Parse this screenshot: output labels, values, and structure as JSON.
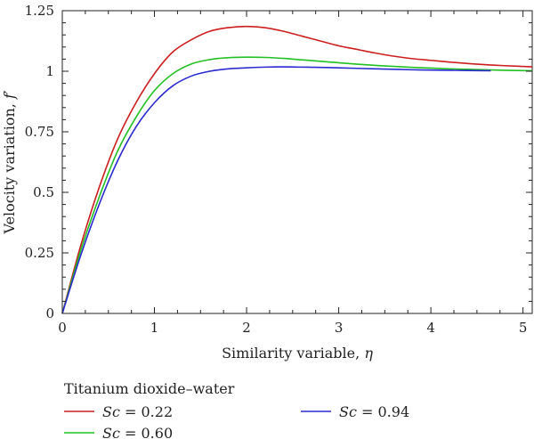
{
  "chart_data": {
    "type": "line",
    "title": "",
    "xlabel": {
      "text": "Similarity variable, ",
      "symbol": "η"
    },
    "ylabel": {
      "text": "Velocity variation, ",
      "symbol": "f′"
    },
    "xlim": [
      0,
      5.1
    ],
    "ylim": [
      0,
      1.25
    ],
    "xticks": [
      0,
      1,
      2,
      3,
      4,
      5
    ],
    "xtick_labels": [
      "0",
      "1",
      "2",
      "3",
      "4",
      "5"
    ],
    "yticks": [
      0,
      0.25,
      0.5,
      0.75,
      1,
      1.25
    ],
    "ytick_labels": [
      "0",
      "0.25",
      "0.5",
      "0.75",
      "1",
      "1.25"
    ],
    "grid": false,
    "legend": {
      "title": "Titanium dioxide–water",
      "placement": "below"
    },
    "series": [
      {
        "label_symbol": "Sc",
        "label_value": " = 0.22",
        "color": "#cc1f1f",
        "x": [
          0,
          0.2,
          0.4,
          0.6,
          0.8,
          1.0,
          1.2,
          1.4,
          1.6,
          1.8,
          2.0,
          2.2,
          2.4,
          2.6,
          2.8,
          3.0,
          3.2,
          3.4,
          3.6,
          3.8,
          4.0,
          4.2,
          4.4,
          4.6,
          4.8,
          5.1
        ],
        "y": [
          0,
          0.28,
          0.52,
          0.72,
          0.87,
          0.99,
          1.08,
          1.13,
          1.165,
          1.18,
          1.185,
          1.18,
          1.165,
          1.145,
          1.125,
          1.105,
          1.09,
          1.075,
          1.062,
          1.052,
          1.045,
          1.038,
          1.032,
          1.027,
          1.023,
          1.018
        ]
      },
      {
        "label_symbol": "Sc",
        "label_value": " = 0.60",
        "color": "#22c022",
        "x": [
          0,
          0.2,
          0.4,
          0.6,
          0.8,
          1.0,
          1.2,
          1.4,
          1.6,
          1.8,
          2.0,
          2.2,
          2.4,
          2.6,
          2.8,
          3.0,
          3.2,
          3.4,
          3.6,
          3.8,
          4.0,
          4.2,
          4.4,
          4.6,
          4.8,
          5.1
        ],
        "y": [
          0,
          0.26,
          0.48,
          0.67,
          0.81,
          0.92,
          0.99,
          1.03,
          1.048,
          1.056,
          1.058,
          1.057,
          1.053,
          1.047,
          1.041,
          1.035,
          1.029,
          1.024,
          1.02,
          1.016,
          1.013,
          1.01,
          1.008,
          1.006,
          1.004,
          1.002
        ]
      },
      {
        "label_symbol": "Sc",
        "label_value": " = 0.94",
        "color": "#2a2ad0",
        "x": [
          0,
          0.2,
          0.4,
          0.6,
          0.8,
          1.0,
          1.2,
          1.4,
          1.6,
          1.8,
          2.0,
          2.2,
          2.4,
          2.6,
          2.8,
          3.0,
          3.2,
          3.4,
          3.6,
          3.8,
          4.0,
          4.2,
          4.4,
          4.65
        ],
        "y": [
          0,
          0.24,
          0.45,
          0.63,
          0.77,
          0.87,
          0.94,
          0.98,
          1.0,
          1.01,
          1.014,
          1.017,
          1.018,
          1.017,
          1.016,
          1.014,
          1.012,
          1.01,
          1.008,
          1.006,
          1.005,
          1.004,
          1.003,
          1.002
        ]
      }
    ]
  }
}
